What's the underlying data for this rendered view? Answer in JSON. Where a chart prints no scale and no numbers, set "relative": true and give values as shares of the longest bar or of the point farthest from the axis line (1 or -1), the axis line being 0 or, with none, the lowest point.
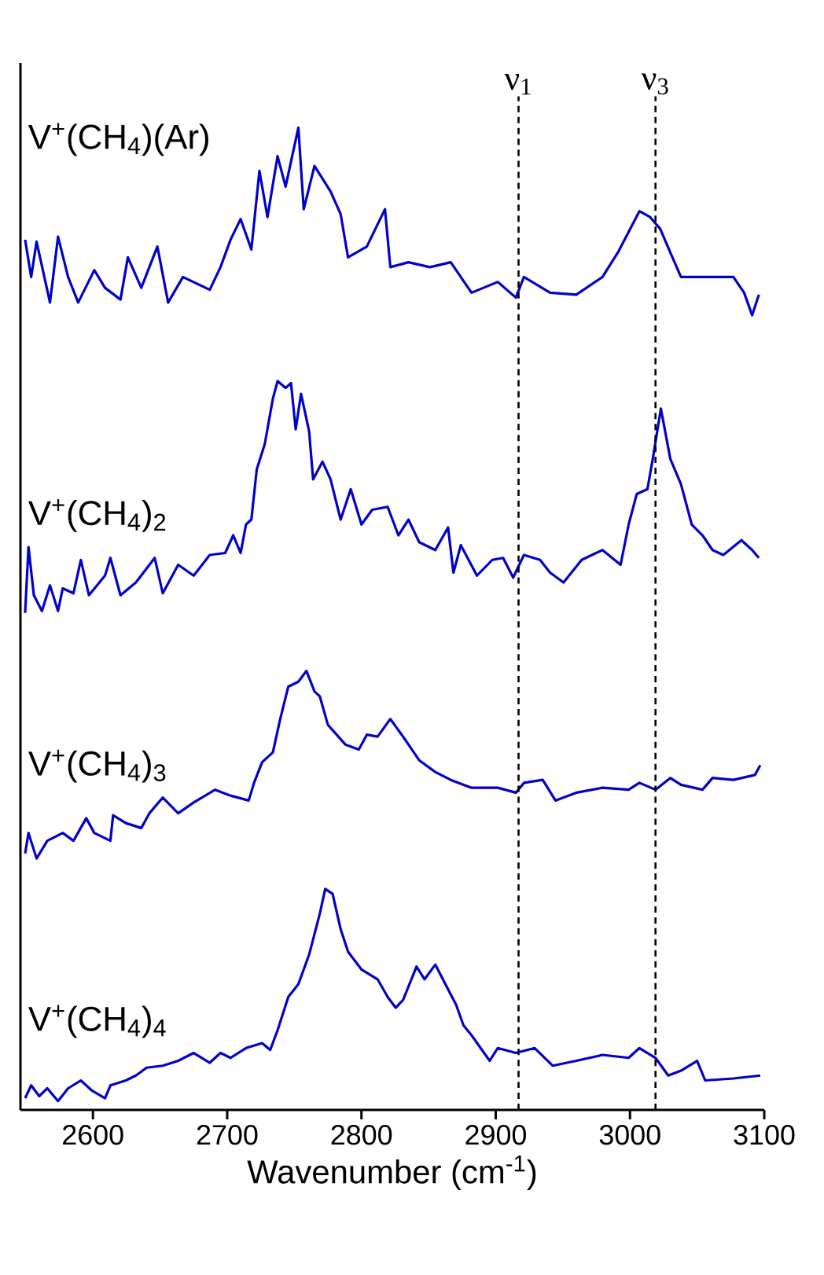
{
  "chart_data": {
    "type": "line",
    "relative": true,
    "tick_labels": "x",
    "xlabel": "Wavenumber (cm$^{-1}$)",
    "xlim": [
      2546,
      3100
    ],
    "xticks": [
      2600,
      2700,
      2800,
      2900,
      3000,
      3100
    ],
    "line_style": "solid",
    "series": [
      {
        "name": "V$^{+}$(CH$_{4}$)(Ar)",
        "color": "#0000cc",
        "x": [
          2549.5,
          2554,
          2558,
          2568,
          2574,
          2581.5,
          2589,
          2601,
          2609,
          2620.5,
          2626,
          2636,
          2648,
          2656,
          2667,
          2687,
          2695,
          2702.5,
          2710,
          2718,
          2724,
          2730,
          2737.5,
          2743.5,
          2753,
          2757,
          2765,
          2777,
          2784.5,
          2790,
          2804,
          2817.5,
          2821.5,
          2835,
          2851,
          2866.5,
          2882,
          2901.5,
          2915,
          2921,
          2940.5,
          2960,
          2979.5,
          2991,
          2999,
          3007,
          3015,
          3022.5,
          3030,
          3038,
          3057.5,
          3077,
          3085,
          3091,
          3096
        ],
        "values": [
          0.886,
          0.848,
          0.884,
          0.822,
          0.889,
          0.848,
          0.822,
          0.855,
          0.837,
          0.825,
          0.868,
          0.837,
          0.879,
          0.822,
          0.848,
          0.835,
          0.858,
          0.886,
          0.907,
          0.876,
          0.956,
          0.909,
          0.971,
          0.94,
          1,
          0.917,
          0.961,
          0.935,
          0.912,
          0.868,
          0.879,
          0.917,
          0.858,
          0.863,
          0.858,
          0.863,
          0.832,
          0.843,
          0.827,
          0.848,
          0.832,
          0.83,
          0.848,
          0.873,
          0.894,
          0.915,
          0.909,
          0.897,
          0.873,
          0.848,
          0.848,
          0.848,
          0.832,
          0.809,
          0.83
        ]
      },
      {
        "name": "V$^{+}$(CH$_{4}$)$_{2}$",
        "color": "#0000cc",
        "x": [
          2549.5,
          2552,
          2556,
          2562,
          2568,
          2574,
          2577.5,
          2585.5,
          2591,
          2597,
          2609,
          2613,
          2620.5,
          2632,
          2646,
          2652,
          2663.5,
          2675,
          2687,
          2698.5,
          2704.5,
          2710,
          2714,
          2718,
          2722,
          2728,
          2734,
          2737.5,
          2743.5,
          2747.5,
          2751,
          2755,
          2761,
          2764,
          2771,
          2777,
          2784.5,
          2792,
          2800,
          2808,
          2819.5,
          2827.5,
          2835,
          2843,
          2855,
          2864.5,
          2868.5,
          2874,
          2886,
          2897.5,
          2905.5,
          2913,
          2921,
          2933,
          2940.5,
          2950.5,
          2964,
          2979.5,
          2993,
          2999,
          3005,
          3013,
          3017,
          3023,
          3030,
          3038,
          3046,
          3054,
          3061.5,
          3069.5,
          3083,
          3091,
          3096
        ],
        "values": [
          0.506,
          0.573,
          0.524,
          0.508,
          0.534,
          0.508,
          0.531,
          0.526,
          0.56,
          0.524,
          0.544,
          0.562,
          0.524,
          0.537,
          0.562,
          0.526,
          0.555,
          0.544,
          0.565,
          0.567,
          0.585,
          0.567,
          0.596,
          0.601,
          0.652,
          0.678,
          0.724,
          0.742,
          0.735,
          0.74,
          0.693,
          0.729,
          0.691,
          0.642,
          0.66,
          0.642,
          0.601,
          0.632,
          0.596,
          0.611,
          0.614,
          0.585,
          0.601,
          0.578,
          0.57,
          0.593,
          0.547,
          0.575,
          0.544,
          0.56,
          0.562,
          0.542,
          0.565,
          0.56,
          0.547,
          0.537,
          0.56,
          0.57,
          0.555,
          0.596,
          0.627,
          0.632,
          0.663,
          0.714,
          0.663,
          0.637,
          0.596,
          0.585,
          0.57,
          0.565,
          0.58,
          0.57,
          0.562
        ]
      },
      {
        "name": "V$^{+}$(CH$_{4}$)$_{3}$",
        "color": "#0000cc",
        "x": [
          2549.5,
          2552,
          2558,
          2566,
          2577.5,
          2585.5,
          2595,
          2601,
          2613,
          2615,
          2624.5,
          2636,
          2642,
          2652,
          2663.5,
          2675,
          2691,
          2702.5,
          2716,
          2720,
          2726,
          2734,
          2739.5,
          2745.5,
          2753,
          2759,
          2765,
          2769,
          2775,
          2788,
          2798,
          2804,
          2812,
          2821.5,
          2831,
          2843,
          2855,
          2866.5,
          2882,
          2901.5,
          2915,
          2921,
          2935,
          2944.5,
          2960,
          2979.5,
          2999,
          3007,
          3019,
          3030,
          3038,
          3054,
          3061.5,
          3077,
          3093,
          3097
        ],
        "values": [
          0.261,
          0.282,
          0.256,
          0.274,
          0.282,
          0.274,
          0.297,
          0.282,
          0.274,
          0.3,
          0.292,
          0.287,
          0.302,
          0.318,
          0.302,
          0.313,
          0.326,
          0.32,
          0.315,
          0.333,
          0.354,
          0.364,
          0.398,
          0.431,
          0.436,
          0.447,
          0.426,
          0.421,
          0.392,
          0.372,
          0.367,
          0.382,
          0.38,
          0.398,
          0.38,
          0.356,
          0.344,
          0.336,
          0.328,
          0.328,
          0.323,
          0.333,
          0.336,
          0.315,
          0.323,
          0.328,
          0.326,
          0.333,
          0.326,
          0.338,
          0.331,
          0.326,
          0.338,
          0.336,
          0.341,
          0.351
        ]
      },
      {
        "name": "V$^{+}$(CH$_{4}$)$_{4}$",
        "color": "#0000cc",
        "x": [
          2549.5,
          2554,
          2560,
          2566,
          2574,
          2581.5,
          2591,
          2599,
          2609,
          2613,
          2624.5,
          2632,
          2640,
          2652,
          2663.5,
          2675,
          2687,
          2695,
          2702.5,
          2714,
          2726,
          2732,
          2737.5,
          2745.5,
          2753,
          2761,
          2769,
          2773,
          2778.5,
          2784.5,
          2790,
          2800,
          2812,
          2819.5,
          2825.5,
          2831,
          2841,
          2847,
          2855,
          2862.5,
          2870.5,
          2876,
          2882,
          2895.5,
          2901.5,
          2915,
          2929,
          2942.5,
          2960,
          2979.5,
          2999,
          3007,
          3019,
          3028.5,
          3038,
          3050,
          3056,
          3077,
          3097
        ],
        "values": [
          0.012,
          0.025,
          0.014,
          0.022,
          0.009,
          0.022,
          0.03,
          0.02,
          0.012,
          0.025,
          0.03,
          0.035,
          0.043,
          0.045,
          0.05,
          0.058,
          0.048,
          0.058,
          0.053,
          0.063,
          0.068,
          0.061,
          0.081,
          0.115,
          0.128,
          0.158,
          0.2,
          0.225,
          0.22,
          0.184,
          0.161,
          0.143,
          0.133,
          0.115,
          0.104,
          0.112,
          0.146,
          0.133,
          0.148,
          0.128,
          0.107,
          0.086,
          0.076,
          0.05,
          0.063,
          0.058,
          0.063,
          0.045,
          0.05,
          0.056,
          0.053,
          0.063,
          0.053,
          0.035,
          0.04,
          0.05,
          0.03,
          0.032,
          0.035
        ]
      }
    ],
    "ref_lines": [
      {
        "axis": "x",
        "value": 2917,
        "label": "ν$_{1}$",
        "color": "#000000",
        "line_style": "dashed"
      },
      {
        "axis": "x",
        "value": 3019,
        "label": "ν$_{3}$",
        "color": "#000000",
        "line_style": "dashed"
      }
    ]
  }
}
